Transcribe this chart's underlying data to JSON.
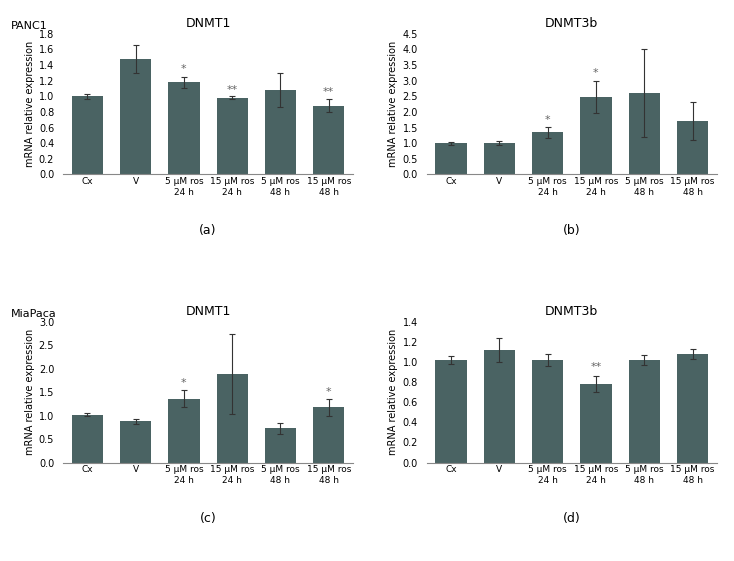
{
  "bar_color": "#4a6363",
  "subplots": [
    {
      "cell_line": "PANC1",
      "title": "DNMT1",
      "label": "(a)",
      "ylim": [
        0,
        1.8
      ],
      "yticks": [
        0,
        0.2,
        0.4,
        0.6,
        0.8,
        1.0,
        1.2,
        1.4,
        1.6,
        1.8
      ],
      "categories": [
        "Cx",
        "V",
        "5 μM ros\n24 h",
        "15 μM ros\n24 h",
        "5 μM ros\n48 h",
        "15 μM ros\n48 h"
      ],
      "values": [
        1.0,
        1.48,
        1.18,
        0.98,
        1.08,
        0.88
      ],
      "errors": [
        0.03,
        0.18,
        0.07,
        0.02,
        0.22,
        0.08
      ],
      "sig": [
        "",
        "",
        "*",
        "**",
        "",
        "**"
      ],
      "sig_heights": [
        0,
        0,
        1.28,
        1.02,
        0,
        0.99
      ]
    },
    {
      "cell_line": "",
      "title": "DNMT3b",
      "label": "(b)",
      "ylim": [
        0,
        4.5
      ],
      "yticks": [
        0,
        0.5,
        1.0,
        1.5,
        2.0,
        2.5,
        3.0,
        3.5,
        4.0,
        4.5
      ],
      "categories": [
        "Cx",
        "V",
        "5 μM ros\n24 h",
        "15 μM ros\n24 h",
        "5 μM ros\n48 h",
        "15 μM ros\n48 h"
      ],
      "values": [
        1.0,
        1.0,
        1.35,
        2.48,
        2.6,
        1.7
      ],
      "errors": [
        0.05,
        0.07,
        0.18,
        0.52,
        1.4,
        0.6
      ],
      "sig": [
        "",
        "",
        "*",
        "*",
        "",
        ""
      ],
      "sig_heights": [
        0,
        0,
        1.58,
        3.08,
        0,
        0
      ]
    },
    {
      "cell_line": "MiaPaca",
      "title": "DNMT1",
      "label": "(c)",
      "ylim": [
        0,
        3.0
      ],
      "yticks": [
        0,
        0.5,
        1.0,
        1.5,
        2.0,
        2.5,
        3.0
      ],
      "categories": [
        "Cx",
        "V",
        "5 μM ros\n24 h",
        "15 μM ros\n24 h",
        "5 μM ros\n48 h",
        "15 μM ros\n48 h"
      ],
      "values": [
        1.02,
        0.88,
        1.36,
        1.88,
        0.73,
        1.18
      ],
      "errors": [
        0.03,
        0.05,
        0.18,
        0.85,
        0.12,
        0.18
      ],
      "sig": [
        "",
        "",
        "*",
        "",
        "",
        "*"
      ],
      "sig_heights": [
        0,
        0,
        1.58,
        0,
        0,
        1.4
      ]
    },
    {
      "cell_line": "",
      "title": "DNMT3b",
      "label": "(d)",
      "ylim": [
        0,
        1.4
      ],
      "yticks": [
        0,
        0.2,
        0.4,
        0.6,
        0.8,
        1.0,
        1.2,
        1.4
      ],
      "categories": [
        "Cx",
        "V",
        "5 μM ros\n24 h",
        "15 μM ros\n24 h",
        "5 μM ros\n48 h",
        "15 μM ros\n48 h"
      ],
      "values": [
        1.02,
        1.12,
        1.02,
        0.78,
        1.02,
        1.08
      ],
      "errors": [
        0.04,
        0.12,
        0.06,
        0.08,
        0.05,
        0.05
      ],
      "sig": [
        "",
        "",
        "",
        "**",
        "",
        ""
      ],
      "sig_heights": [
        0,
        0,
        0,
        0.9,
        0,
        0
      ]
    }
  ]
}
